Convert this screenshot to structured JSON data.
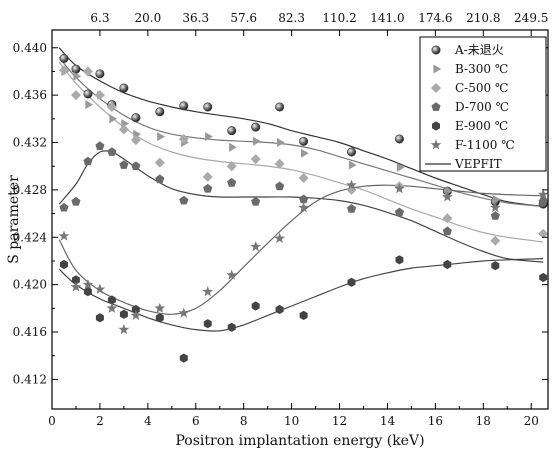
{
  "chart_data": {
    "type": "scatter",
    "title": "",
    "xlabel": "Positron implantation energy (keV)",
    "ylabel": "S parameter",
    "xlim": [
      0,
      20.7
    ],
    "ylim": [
      0.4095,
      0.4415
    ],
    "x_ticks": [
      "0",
      "2",
      "4",
      "6",
      "8",
      "10",
      "12",
      "14",
      "16",
      "18",
      "20"
    ],
    "x_tick_values": [
      0,
      2,
      4,
      6,
      8,
      10,
      12,
      14,
      16,
      18,
      20
    ],
    "y_ticks": [
      "0.412",
      "0.416",
      "0.420",
      "0.424",
      "0.428",
      "0.432",
      "0.436",
      "0.440"
    ],
    "y_tick_values": [
      0.412,
      0.416,
      0.42,
      0.424,
      0.428,
      0.432,
      0.436,
      0.44
    ],
    "top_ticks": [
      "6.3",
      "20.0",
      "36.3",
      "57.6",
      "82.3",
      "110.2",
      "141.0",
      "174.6",
      "210.8",
      "249.5"
    ],
    "top_tick_energies": [
      2,
      4,
      6,
      8,
      10,
      12,
      14,
      16,
      18,
      20
    ],
    "grid": false,
    "legend_position": "top-right",
    "series": [
      {
        "name": "A-未退火",
        "marker": "sphere",
        "color": "#555555",
        "x": [
          0.5,
          1,
          1.5,
          2,
          2.5,
          3,
          3.5,
          4.5,
          5.5,
          6.5,
          7.5,
          8.5,
          9.5,
          10.5,
          12.5,
          14.5,
          16.5,
          18.5,
          20.5
        ],
        "y": [
          0.4391,
          0.4382,
          0.4361,
          0.4378,
          0.4352,
          0.4366,
          0.4341,
          0.4346,
          0.4351,
          0.435,
          0.433,
          0.4333,
          0.435,
          0.4321,
          0.4312,
          0.4323,
          0.4279,
          0.427,
          0.4268
        ],
        "fit_x": [
          0.3,
          1,
          2,
          3,
          4,
          5,
          6,
          7,
          8,
          9,
          10,
          11,
          12,
          13,
          14,
          15,
          16,
          17,
          18,
          19,
          20.5
        ],
        "fit_y": [
          0.44,
          0.4385,
          0.4372,
          0.4362,
          0.4355,
          0.435,
          0.4346,
          0.4343,
          0.434,
          0.4336,
          0.433,
          0.4325,
          0.432,
          0.4313,
          0.4306,
          0.4298,
          0.429,
          0.4283,
          0.4276,
          0.427,
          0.4266
        ]
      },
      {
        "name": "B-300 ℃",
        "marker": "triangle",
        "color": "#999999",
        "x": [
          0.5,
          1,
          1.5,
          2,
          2.5,
          3,
          3.5,
          4.5,
          5.5,
          6.5,
          7.5,
          8.5,
          9.5,
          10.5,
          12.5,
          14.5,
          16.5,
          18.5,
          20.5
        ],
        "y": [
          0.438,
          0.4376,
          0.4352,
          0.436,
          0.434,
          0.4336,
          0.4327,
          0.4325,
          0.432,
          0.4325,
          0.4316,
          0.4321,
          0.432,
          0.4311,
          0.4301,
          0.4299,
          0.4279,
          0.4272,
          0.4272
        ],
        "fit_x": [
          0.3,
          1,
          2,
          3,
          4,
          5,
          6,
          7,
          8,
          9,
          10,
          11,
          12,
          13,
          14,
          15,
          16,
          17,
          18,
          19,
          20.5
        ],
        "fit_y": [
          0.4392,
          0.4375,
          0.4357,
          0.4343,
          0.4333,
          0.4327,
          0.4324,
          0.4322,
          0.4321,
          0.432,
          0.4318,
          0.4314,
          0.4308,
          0.4302,
          0.4296,
          0.429,
          0.4284,
          0.4278,
          0.4273,
          0.4269,
          0.4266
        ]
      },
      {
        "name": "C-500 ℃",
        "marker": "diamond",
        "color": "#aaaaaa",
        "x": [
          0.5,
          1,
          1.5,
          2,
          2.5,
          3,
          3.5,
          4.5,
          5.5,
          6.5,
          7.5,
          8.5,
          9.5,
          10.5,
          12.5,
          14.5,
          16.5,
          18.5,
          20.5
        ],
        "y": [
          0.4381,
          0.436,
          0.438,
          0.436,
          0.435,
          0.4331,
          0.4322,
          0.4303,
          0.4323,
          0.4291,
          0.43,
          0.4306,
          0.4302,
          0.429,
          0.428,
          0.4283,
          0.4256,
          0.4237,
          0.4243
        ],
        "fit_x": [
          0.3,
          1,
          2,
          3,
          4,
          5,
          6,
          7,
          8,
          9,
          10,
          11,
          12,
          13,
          14,
          15,
          16,
          17,
          18,
          19,
          20.5
        ],
        "fit_y": [
          0.4388,
          0.437,
          0.435,
          0.4333,
          0.432,
          0.4312,
          0.4307,
          0.4304,
          0.4302,
          0.43,
          0.4297,
          0.4292,
          0.4286,
          0.428,
          0.4272,
          0.4264,
          0.4257,
          0.425,
          0.4244,
          0.424,
          0.4236
        ]
      },
      {
        "name": "D-700 ℃",
        "marker": "pentagon",
        "color": "#6a6a6a",
        "x": [
          0.5,
          1,
          1.5,
          2,
          2.5,
          3,
          3.5,
          4.5,
          5.5,
          6.5,
          7.5,
          8.5,
          9.5,
          10.5,
          12.5,
          14.5,
          16.5,
          18.5,
          20.5
        ],
        "y": [
          0.4265,
          0.427,
          0.4304,
          0.4317,
          0.4312,
          0.4301,
          0.43,
          0.4289,
          0.4271,
          0.4281,
          0.4286,
          0.427,
          0.4283,
          0.4272,
          0.4264,
          0.4261,
          0.4245,
          0.4258,
          0.427
        ],
        "fit_x": [
          0.3,
          1,
          1.5,
          2,
          2.5,
          3,
          4,
          5,
          6,
          7,
          8,
          9,
          10,
          11,
          12,
          13,
          14,
          15,
          16,
          17,
          18,
          19,
          20.5
        ],
        "fit_y": [
          0.4268,
          0.4285,
          0.4302,
          0.4312,
          0.4312,
          0.4306,
          0.4292,
          0.4281,
          0.4276,
          0.4274,
          0.4274,
          0.4274,
          0.4274,
          0.4273,
          0.4271,
          0.4267,
          0.4261,
          0.4254,
          0.4245,
          0.4236,
          0.4228,
          0.4222,
          0.4219
        ]
      },
      {
        "name": "E-900 ℃",
        "marker": "hexagon",
        "color": "#444444",
        "x": [
          0.5,
          1,
          1.5,
          2,
          2.5,
          3,
          3.5,
          4.5,
          5.5,
          6.5,
          7.5,
          8.5,
          9.5,
          10.5,
          12.5,
          14.5,
          16.5,
          18.5,
          20.5
        ],
        "y": [
          0.4217,
          0.4204,
          0.4194,
          0.4172,
          0.4187,
          0.4175,
          0.4179,
          0.4172,
          0.4138,
          0.4167,
          0.4164,
          0.4182,
          0.4179,
          0.4174,
          0.4202,
          0.4221,
          0.4217,
          0.4216,
          0.4206
        ],
        "fit_x": [
          0.3,
          1,
          2,
          3,
          4,
          5,
          6,
          7,
          8,
          9,
          10,
          11,
          12,
          13,
          14,
          15,
          16,
          17,
          18,
          19,
          20.5
        ],
        "fit_y": [
          0.4213,
          0.42,
          0.4188,
          0.418,
          0.4172,
          0.4166,
          0.4162,
          0.4161,
          0.4166,
          0.4174,
          0.4182,
          0.419,
          0.4198,
          0.4205,
          0.421,
          0.4214,
          0.4216,
          0.4218,
          0.422,
          0.4221,
          0.4222
        ]
      },
      {
        "name": "F-1100 ℃",
        "marker": "star",
        "color": "#777777",
        "x": [
          0.5,
          1,
          1.5,
          2,
          2.5,
          3,
          3.5,
          4.5,
          5.5,
          6.5,
          7.5,
          8.5,
          9.5,
          10.5,
          12.5,
          14.5,
          16.5,
          18.5,
          20.5
        ],
        "y": [
          0.4241,
          0.4198,
          0.42,
          0.4196,
          0.418,
          0.4162,
          0.4174,
          0.418,
          0.4176,
          0.4194,
          0.4208,
          0.4232,
          0.4239,
          0.4265,
          0.4284,
          0.4281,
          0.4274,
          0.4265,
          0.4276
        ],
        "fit_x": [
          0.3,
          1,
          2,
          3,
          4,
          5,
          6,
          7,
          8,
          9,
          10,
          11,
          12,
          13,
          14,
          15,
          16,
          17,
          18,
          19,
          20.5
        ],
        "fit_y": [
          0.4238,
          0.4212,
          0.4195,
          0.4185,
          0.4178,
          0.4175,
          0.418,
          0.4195,
          0.4215,
          0.4235,
          0.4254,
          0.427,
          0.4279,
          0.4283,
          0.4284,
          0.4283,
          0.4281,
          0.4279,
          0.4277,
          0.4276,
          0.4275
        ]
      }
    ],
    "legend_extra": "VEPFIT"
  }
}
